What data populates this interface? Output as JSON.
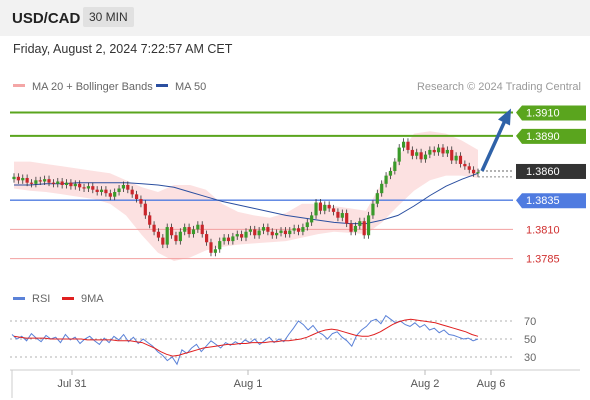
{
  "header": {
    "symbol": "USD/CAD",
    "timeframe": "30 MIN"
  },
  "datetime": "Friday, August 2, 2024 7:22:57 AM CET",
  "colors": {
    "green_level": "#5aa51e",
    "blue_level": "#4f7be0",
    "red_level": "#f3a0a0",
    "current_price_box": "#333333",
    "candle_up": "#3a9a2a",
    "candle_down": "#c9262b",
    "bollinger_fill": "#fbdcdc",
    "ma50": "#2b4fa0",
    "rsi": "#5b82d8",
    "rsi_ma": "#e02020",
    "arrow": "#2f62a8"
  },
  "chart_data": [
    {
      "type": "candlestick",
      "legend": [
        {
          "name": "MA 20 + Bollinger Bands",
          "color": "#f4a6a6"
        },
        {
          "name": "MA 50",
          "color": "#2b4fa0"
        }
      ],
      "watermark": "Research © 2024 Trading Central",
      "x_ticks": [
        "Jul 31",
        "Aug 1",
        "Aug 2",
        "Aug 6"
      ],
      "y_range": [
        1.3765,
        1.3925
      ],
      "levels": [
        {
          "value": 1.391,
          "label": "1.3910",
          "kind": "resistance",
          "color": "#5aa51e"
        },
        {
          "value": 1.389,
          "label": "1.3890",
          "kind": "resistance",
          "color": "#5aa51e"
        },
        {
          "value": 1.386,
          "label": "1.3860",
          "kind": "current"
        },
        {
          "value": 1.3835,
          "label": "1.3835",
          "kind": "pivot",
          "color": "#4f7be0"
        },
        {
          "value": 1.381,
          "label": "1.3810",
          "kind": "support",
          "color": "#f3a0a0"
        },
        {
          "value": 1.3785,
          "label": "1.3785",
          "kind": "support",
          "color": "#f3a0a0"
        }
      ],
      "close_series": [
        1.3855,
        1.3852,
        1.3854,
        1.385,
        1.3849,
        1.3852,
        1.3851,
        1.3853,
        1.385,
        1.3849,
        1.3851,
        1.3848,
        1.385,
        1.3847,
        1.3849,
        1.3846,
        1.3845,
        1.3847,
        1.3844,
        1.3842,
        1.3844,
        1.3841,
        1.3838,
        1.3842,
        1.3845,
        1.3848,
        1.3844,
        1.384,
        1.3836,
        1.3832,
        1.3822,
        1.3814,
        1.3808,
        1.3803,
        1.3797,
        1.3812,
        1.3805,
        1.38,
        1.3808,
        1.3812,
        1.3806,
        1.381,
        1.3814,
        1.3806,
        1.3799,
        1.379,
        1.3793,
        1.38,
        1.3803,
        1.38,
        1.3804,
        1.3806,
        1.3803,
        1.3808,
        1.381,
        1.3805,
        1.3809,
        1.3812,
        1.3808,
        1.3805,
        1.3807,
        1.3809,
        1.3806,
        1.3809,
        1.3811,
        1.3808,
        1.3812,
        1.3816,
        1.3822,
        1.3833,
        1.3826,
        1.3831,
        1.3828,
        1.3825,
        1.382,
        1.3824,
        1.3815,
        1.3808,
        1.3813,
        1.3817,
        1.3805,
        1.3822,
        1.3832,
        1.3841,
        1.3849,
        1.3856,
        1.386,
        1.3868,
        1.388,
        1.3885,
        1.3878,
        1.3873,
        1.3876,
        1.387,
        1.3874,
        1.3878,
        1.3876,
        1.388,
        1.3875,
        1.3878,
        1.3869,
        1.3873,
        1.3866,
        1.3864,
        1.3861,
        1.3858,
        1.3859
      ],
      "ma50_series": [
        1.3848,
        1.3848,
        1.3849,
        1.3849,
        1.385,
        1.385,
        1.385,
        1.385,
        1.3849,
        1.3848,
        1.3846,
        1.3842,
        1.3838,
        1.3834,
        1.3831,
        1.3828,
        1.3825,
        1.3822,
        1.382,
        1.3818,
        1.3816,
        1.3815,
        1.3815,
        1.3818,
        1.3822,
        1.383,
        1.3839,
        1.3847,
        1.3853,
        1.3858
      ],
      "bollinger_upper": [
        1.3868,
        1.3868,
        1.3866,
        1.3864,
        1.3862,
        1.386,
        1.3858,
        1.3852,
        1.3846,
        1.3842,
        1.3848,
        1.3848,
        1.3844,
        1.3832,
        1.3825,
        1.3822,
        1.382,
        1.3824,
        1.3832,
        1.3832,
        1.383,
        1.3828,
        1.3826,
        1.385,
        1.3872,
        1.3892,
        1.3894,
        1.3892,
        1.3886,
        1.3878
      ],
      "bollinger_lower": [
        1.3845,
        1.3843,
        1.3842,
        1.384,
        1.3838,
        1.3836,
        1.3832,
        1.3822,
        1.3805,
        1.379,
        1.3783,
        1.3786,
        1.3792,
        1.3795,
        1.3797,
        1.3798,
        1.3799,
        1.38,
        1.3803,
        1.3806,
        1.3808,
        1.3807,
        1.3806,
        1.3816,
        1.383,
        1.3843,
        1.3852,
        1.3856,
        1.3856,
        1.3854
      ],
      "forecast": {
        "from": 1.386,
        "to": 1.391
      }
    },
    {
      "type": "line",
      "legend": [
        {
          "name": "RSI",
          "color": "#5b82d8"
        },
        {
          "name": "9MA",
          "color": "#e02020"
        }
      ],
      "y_ticks": [
        70,
        50,
        30
      ],
      "y_range": [
        20,
        80
      ],
      "rsi_series": [
        55,
        50,
        53,
        48,
        56,
        51,
        47,
        54,
        50,
        52,
        46,
        55,
        49,
        52,
        45,
        50,
        53,
        48,
        44,
        51,
        46,
        53,
        49,
        55,
        47,
        52,
        45,
        50,
        46,
        42,
        36,
        32,
        26,
        30,
        22,
        38,
        34,
        40,
        44,
        36,
        42,
        48,
        44,
        40,
        46,
        43,
        47,
        44,
        49,
        46,
        50,
        44,
        48,
        52,
        46,
        50,
        47,
        55,
        62,
        70,
        66,
        60,
        65,
        58,
        55,
        50,
        56,
        58,
        52,
        48,
        42,
        54,
        60,
        64,
        70,
        72,
        67,
        76,
        72,
        68,
        70,
        66,
        64,
        68,
        63,
        66,
        60,
        62,
        57,
        60,
        55,
        54,
        52,
        50,
        51,
        48,
        50
      ],
      "ma9_series": [
        53,
        52,
        51,
        51,
        51,
        51,
        50,
        50,
        50,
        50,
        50,
        50,
        49,
        49,
        49,
        49,
        49,
        48,
        48,
        48,
        47,
        46,
        43,
        40,
        36,
        33,
        31,
        32,
        34,
        36,
        38,
        40,
        41,
        42,
        43,
        44,
        44,
        45,
        45,
        46,
        46,
        46,
        47,
        47,
        48,
        48,
        49,
        50,
        52,
        55,
        58,
        60,
        61,
        60,
        58,
        56,
        54,
        53,
        53,
        55,
        58,
        62,
        66,
        69,
        71,
        72,
        71,
        70,
        69,
        68,
        66,
        64,
        62,
        60,
        58,
        55,
        53
      ]
    }
  ]
}
